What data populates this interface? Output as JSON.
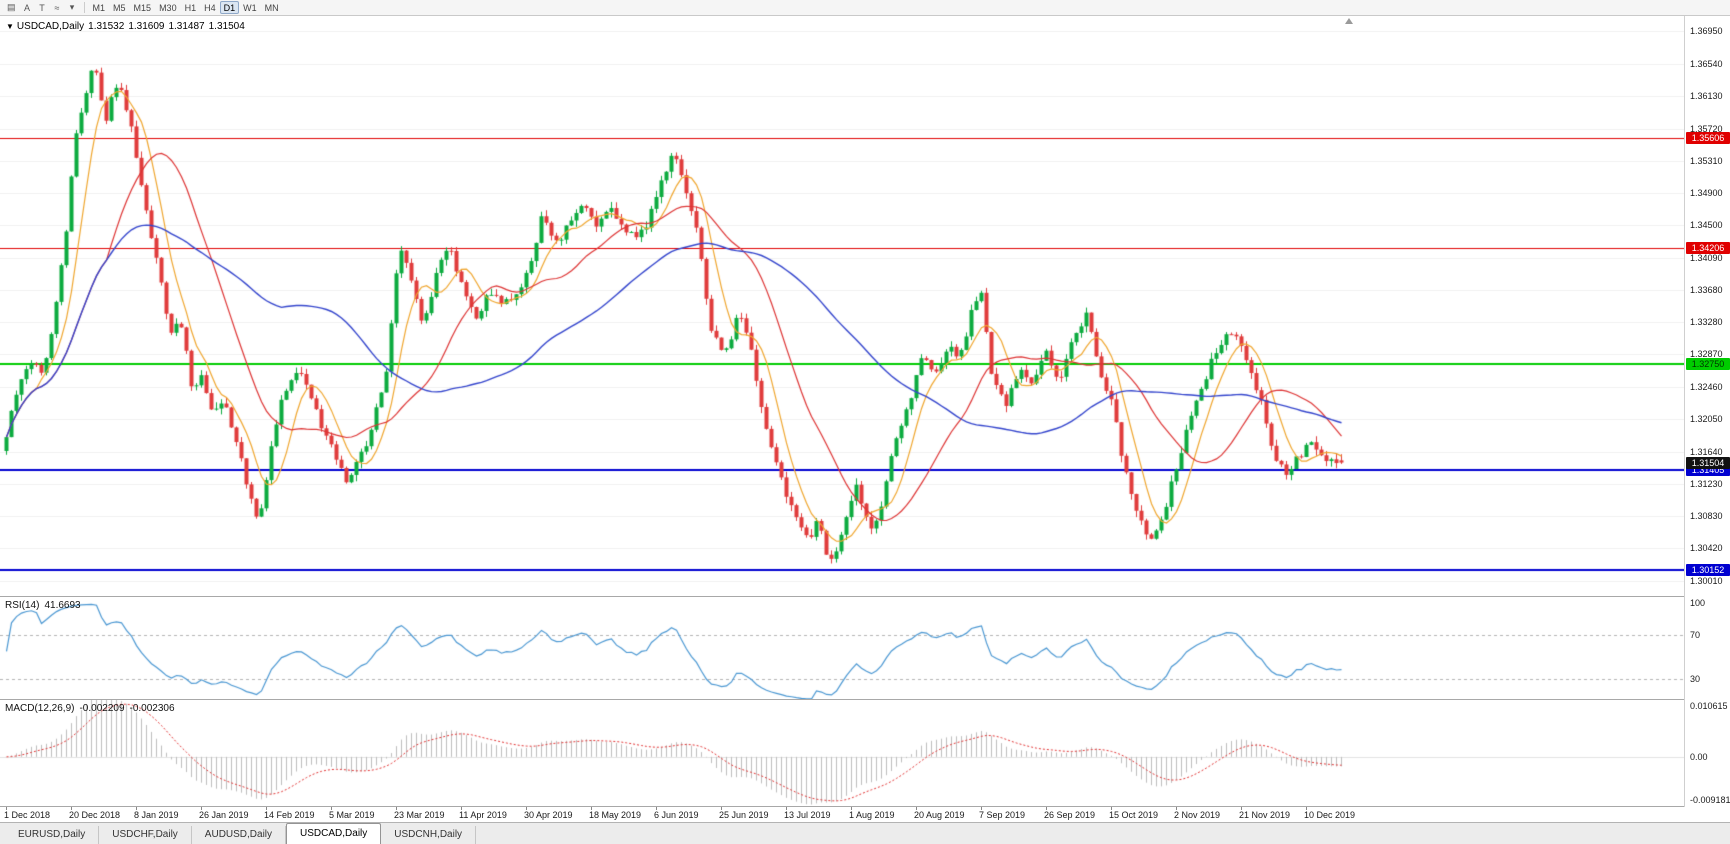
{
  "toolbar": {
    "tools": [
      {
        "name": "chart-list-icon",
        "glyph": "▤"
      },
      {
        "name": "font-a-icon",
        "glyph": "A"
      },
      {
        "name": "text-tool-icon",
        "glyph": "T"
      },
      {
        "name": "polyline-tool-icon",
        "glyph": "≈"
      },
      {
        "name": "tool-dropdown-caret-icon",
        "glyph": "▾"
      }
    ],
    "timeframes": [
      "M1",
      "M5",
      "M15",
      "M30",
      "H1",
      "H4",
      "D1",
      "W1",
      "MN"
    ],
    "active_timeframe": "D1"
  },
  "chart_title": {
    "caret": "▼",
    "symbol": "USDCAD,Daily",
    "open": "1.31532",
    "high": "1.31609",
    "low": "1.31487",
    "close": "1.31504"
  },
  "chart_data": {
    "type": "candlestick",
    "symbol": "USDCAD",
    "timeframe": "Daily",
    "ohlc_display": {
      "open": "1.31532",
      "high": "1.31609",
      "low": "1.31487",
      "close": "1.31504"
    },
    "y_range": [
      1.2982,
      1.3714
    ],
    "y_ticks": [
      "1.36950",
      "1.36540",
      "1.36130",
      "1.35720",
      "1.35310",
      "1.34900",
      "1.34500",
      "1.34090",
      "1.33680",
      "1.33280",
      "1.32870",
      "1.32460",
      "1.32050",
      "1.31640",
      "1.31230",
      "1.30830",
      "1.30420",
      "1.30010"
    ],
    "x_labels": [
      "1 Dec 2018",
      "20 Dec 2018",
      "8 Jan 2019",
      "26 Jan 2019",
      "14 Feb 2019",
      "5 Mar 2019",
      "23 Mar 2019",
      "11 Apr 2019",
      "30 Apr 2019",
      "18 May 2019",
      "6 Jun 2019",
      "25 Jun 2019",
      "13 Jul 2019",
      "1 Aug 2019",
      "20 Aug 2019",
      "7 Sep 2019",
      "26 Sep 2019",
      "15 Oct 2019",
      "2 Nov 2019",
      "21 Nov 2019",
      "10 Dec 2019"
    ],
    "candles_per_label": 13,
    "num_candles": 268,
    "seed": 12,
    "price_path": [
      [
        0.0,
        1.3165
      ],
      [
        0.01,
        1.323
      ],
      [
        0.02,
        1.328
      ],
      [
        0.03,
        1.3255
      ],
      [
        0.04,
        1.335
      ],
      [
        0.048,
        1.344
      ],
      [
        0.055,
        1.3565
      ],
      [
        0.062,
        1.362
      ],
      [
        0.07,
        1.3655
      ],
      [
        0.078,
        1.358
      ],
      [
        0.085,
        1.364
      ],
      [
        0.092,
        1.36
      ],
      [
        0.1,
        1.3545
      ],
      [
        0.11,
        1.345
      ],
      [
        0.118,
        1.338
      ],
      [
        0.126,
        1.331
      ],
      [
        0.134,
        1.3335
      ],
      [
        0.142,
        1.324
      ],
      [
        0.15,
        1.3265
      ],
      [
        0.158,
        1.321
      ],
      [
        0.166,
        1.3235
      ],
      [
        0.175,
        1.318
      ],
      [
        0.185,
        1.3115
      ],
      [
        0.193,
        1.3075
      ],
      [
        0.2,
        1.316
      ],
      [
        0.21,
        1.323
      ],
      [
        0.22,
        1.327
      ],
      [
        0.23,
        1.3245
      ],
      [
        0.24,
        1.319
      ],
      [
        0.25,
        1.3155
      ],
      [
        0.26,
        1.312
      ],
      [
        0.27,
        1.3165
      ],
      [
        0.28,
        1.321
      ],
      [
        0.29,
        1.329
      ],
      [
        0.298,
        1.3445
      ],
      [
        0.306,
        1.338
      ],
      [
        0.315,
        1.332
      ],
      [
        0.325,
        1.3385
      ],
      [
        0.335,
        1.342
      ],
      [
        0.345,
        1.3365
      ],
      [
        0.355,
        1.3335
      ],
      [
        0.365,
        1.337
      ],
      [
        0.375,
        1.3345
      ],
      [
        0.385,
        1.3365
      ],
      [
        0.395,
        1.3395
      ],
      [
        0.405,
        1.347
      ],
      [
        0.415,
        1.342
      ],
      [
        0.425,
        1.345
      ],
      [
        0.435,
        1.348
      ],
      [
        0.445,
        1.3445
      ],
      [
        0.455,
        1.3475
      ],
      [
        0.465,
        1.345
      ],
      [
        0.475,
        1.3435
      ],
      [
        0.485,
        1.346
      ],
      [
        0.495,
        1.351
      ],
      [
        0.503,
        1.3555
      ],
      [
        0.512,
        1.3495
      ],
      [
        0.522,
        1.343
      ],
      [
        0.532,
        1.331
      ],
      [
        0.542,
        1.328
      ],
      [
        0.552,
        1.3345
      ],
      [
        0.562,
        1.328
      ],
      [
        0.572,
        1.3195
      ],
      [
        0.582,
        1.3135
      ],
      [
        0.592,
        1.3095
      ],
      [
        0.602,
        1.305
      ],
      [
        0.612,
        1.308
      ],
      [
        0.62,
        1.302
      ],
      [
        0.63,
        1.3065
      ],
      [
        0.64,
        1.312
      ],
      [
        0.65,
        1.306
      ],
      [
        0.66,
        1.311
      ],
      [
        0.67,
        1.318
      ],
      [
        0.68,
        1.323
      ],
      [
        0.69,
        1.3295
      ],
      [
        0.7,
        1.326
      ],
      [
        0.71,
        1.331
      ],
      [
        0.718,
        1.328
      ],
      [
        0.726,
        1.334
      ],
      [
        0.734,
        1.337
      ],
      [
        0.742,
        1.325
      ],
      [
        0.752,
        1.322
      ],
      [
        0.762,
        1.327
      ],
      [
        0.772,
        1.324
      ],
      [
        0.782,
        1.329
      ],
      [
        0.792,
        1.3255
      ],
      [
        0.802,
        1.3305
      ],
      [
        0.812,
        1.334
      ],
      [
        0.822,
        1.327
      ],
      [
        0.832,
        1.3225
      ],
      [
        0.842,
        1.313
      ],
      [
        0.852,
        1.308
      ],
      [
        0.862,
        1.3045
      ],
      [
        0.872,
        1.31
      ],
      [
        0.882,
        1.316
      ],
      [
        0.892,
        1.3215
      ],
      [
        0.902,
        1.326
      ],
      [
        0.912,
        1.33
      ],
      [
        0.922,
        1.332
      ],
      [
        0.932,
        1.3275
      ],
      [
        0.942,
        1.323
      ],
      [
        0.952,
        1.317
      ],
      [
        0.962,
        1.3125
      ],
      [
        0.972,
        1.316
      ],
      [
        0.982,
        1.3175
      ],
      [
        0.992,
        1.3155
      ],
      [
        1.0,
        1.315
      ]
    ],
    "hlines": [
      {
        "value": 1.35606,
        "label": "1.35606",
        "color": "#e00000",
        "thickness": 1,
        "text": "#ffffff"
      },
      {
        "value": 1.34206,
        "label": "1.34206",
        "color": "#e00000",
        "thickness": 1,
        "text": "#ffffff"
      },
      {
        "value": 1.3275,
        "label": "1.32750",
        "color": "#00cc00",
        "thickness": 2,
        "text": "#003300"
      },
      {
        "value": 1.31405,
        "label": "1.31405",
        "color": "#0000d0",
        "thickness": 2,
        "text": "#ffffff"
      },
      {
        "value": 1.30152,
        "label": "1.30152",
        "color": "#0000d0",
        "thickness": 2,
        "text": "#ffffff"
      }
    ],
    "bid": {
      "value": 1.31504,
      "label": "1.31504",
      "bg": "#111111",
      "text": "#ffffff"
    },
    "colors": {
      "up": "#0cab3f",
      "down": "#e03c3c",
      "ma_fast": "#efa62f",
      "ma_mid": "#dd3333",
      "ma_slow": "#3344cc",
      "grid": "#f0f0f0"
    },
    "ma_periods": {
      "fast": 7,
      "mid": 21,
      "slow": 56
    },
    "indicators": {
      "rsi": {
        "name": "RSI(14)",
        "value": "41.6693",
        "period": 14,
        "color": "#4a97d2",
        "scale_labels": [
          "100",
          "70",
          "30"
        ],
        "level_lines": [
          70,
          30
        ],
        "level_color": "#b3b3b3",
        "range": [
          12,
          104
        ]
      },
      "macd": {
        "name": "MACD(12,26,9)",
        "value_main": "-0.002209",
        "value_signal": "-0.002306",
        "fast": 12,
        "slow": 26,
        "signal": 9,
        "range": [
          -0.009181,
          0.010615
        ],
        "scale_labels": [
          "0.010615",
          "0.00",
          "-0.009181"
        ],
        "hist_color": "#bdbdbd",
        "signal_color": "#e03030"
      }
    }
  },
  "tabs": {
    "items": [
      "EURUSD,Daily",
      "USDCHF,Daily",
      "AUDUSD,Daily",
      "USDCAD,Daily",
      "USDCNH,Daily"
    ],
    "active": "USDCAD,Daily"
  }
}
